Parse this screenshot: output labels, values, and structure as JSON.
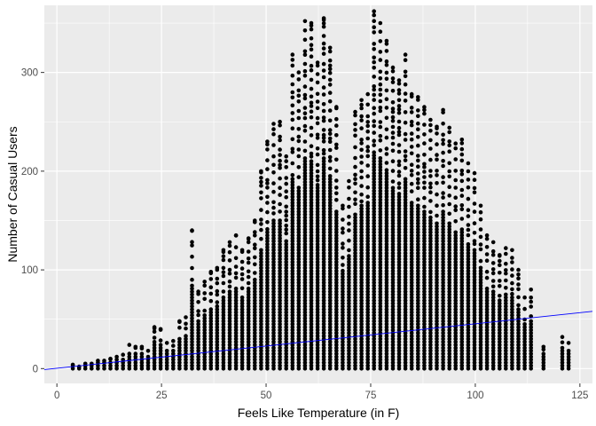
{
  "chart_data": {
    "type": "scatter",
    "title": "",
    "xlabel": "Feels Like Temperature (in F)",
    "ylabel": "Number of Casual Users",
    "xlim": [
      -3,
      128
    ],
    "ylim": [
      -15,
      368
    ],
    "x_ticks": [
      0,
      25,
      50,
      75,
      100,
      125
    ],
    "y_ticks": [
      0,
      100,
      200,
      300
    ],
    "x_tick_labels": [
      "0",
      "25",
      "50",
      "75",
      "100",
      "125"
    ],
    "y_tick_labels": [
      "0",
      "100",
      "200",
      "300"
    ],
    "grid": true,
    "legend": "none",
    "colors": {
      "panel": "#ebebeb",
      "grid": "#ffffff",
      "points": "#000000",
      "trend": "#0000ff"
    },
    "temperature_columns": [
      3.8,
      5.3,
      6.8,
      8.3,
      9.8,
      11.3,
      12.8,
      14.3,
      15.8,
      17.3,
      18.8,
      20.3,
      21.8,
      23.3,
      24.8,
      26.3,
      27.8,
      29.3,
      30.8,
      32.3,
      33.8,
      35.3,
      36.8,
      38.3,
      39.8,
      41.3,
      42.8,
      44.3,
      45.8,
      47.3,
      48.8,
      50.3,
      51.8,
      53.3,
      54.8,
      56.3,
      57.8,
      59.3,
      60.8,
      62.3,
      63.8,
      65.3,
      66.8,
      68.3,
      69.8,
      71.3,
      72.8,
      74.3,
      75.8,
      77.3,
      78.8,
      80.3,
      81.8,
      83.3,
      84.8,
      86.3,
      87.8,
      89.3,
      90.8,
      92.3,
      93.8,
      95.3,
      96.8,
      98.3,
      99.8,
      101.3,
      102.8,
      104.3,
      105.8,
      107.3,
      108.8,
      110.3,
      111.8,
      113.3,
      116.3,
      120.8,
      122.3
    ],
    "column_max_users": [
      4,
      2,
      5,
      5,
      8,
      8,
      10,
      12,
      14,
      24,
      22,
      22,
      18,
      42,
      40,
      26,
      28,
      48,
      52,
      140,
      78,
      88,
      98,
      102,
      120,
      128,
      135,
      120,
      132,
      150,
      200,
      230,
      248,
      250,
      215,
      318,
      300,
      352,
      350,
      310,
      355,
      325,
      265,
      165,
      190,
      260,
      272,
      278,
      362,
      350,
      332,
      305,
      292,
      318,
      278,
      275,
      265,
      252,
      245,
      262,
      244,
      228,
      232,
      208,
      198,
      165,
      135,
      128,
      115,
      122,
      120,
      100,
      72,
      80,
      22,
      32,
      26
    ],
    "trend_line": {
      "x": [
        -3,
        128
      ],
      "y": [
        -1,
        58
      ]
    }
  }
}
